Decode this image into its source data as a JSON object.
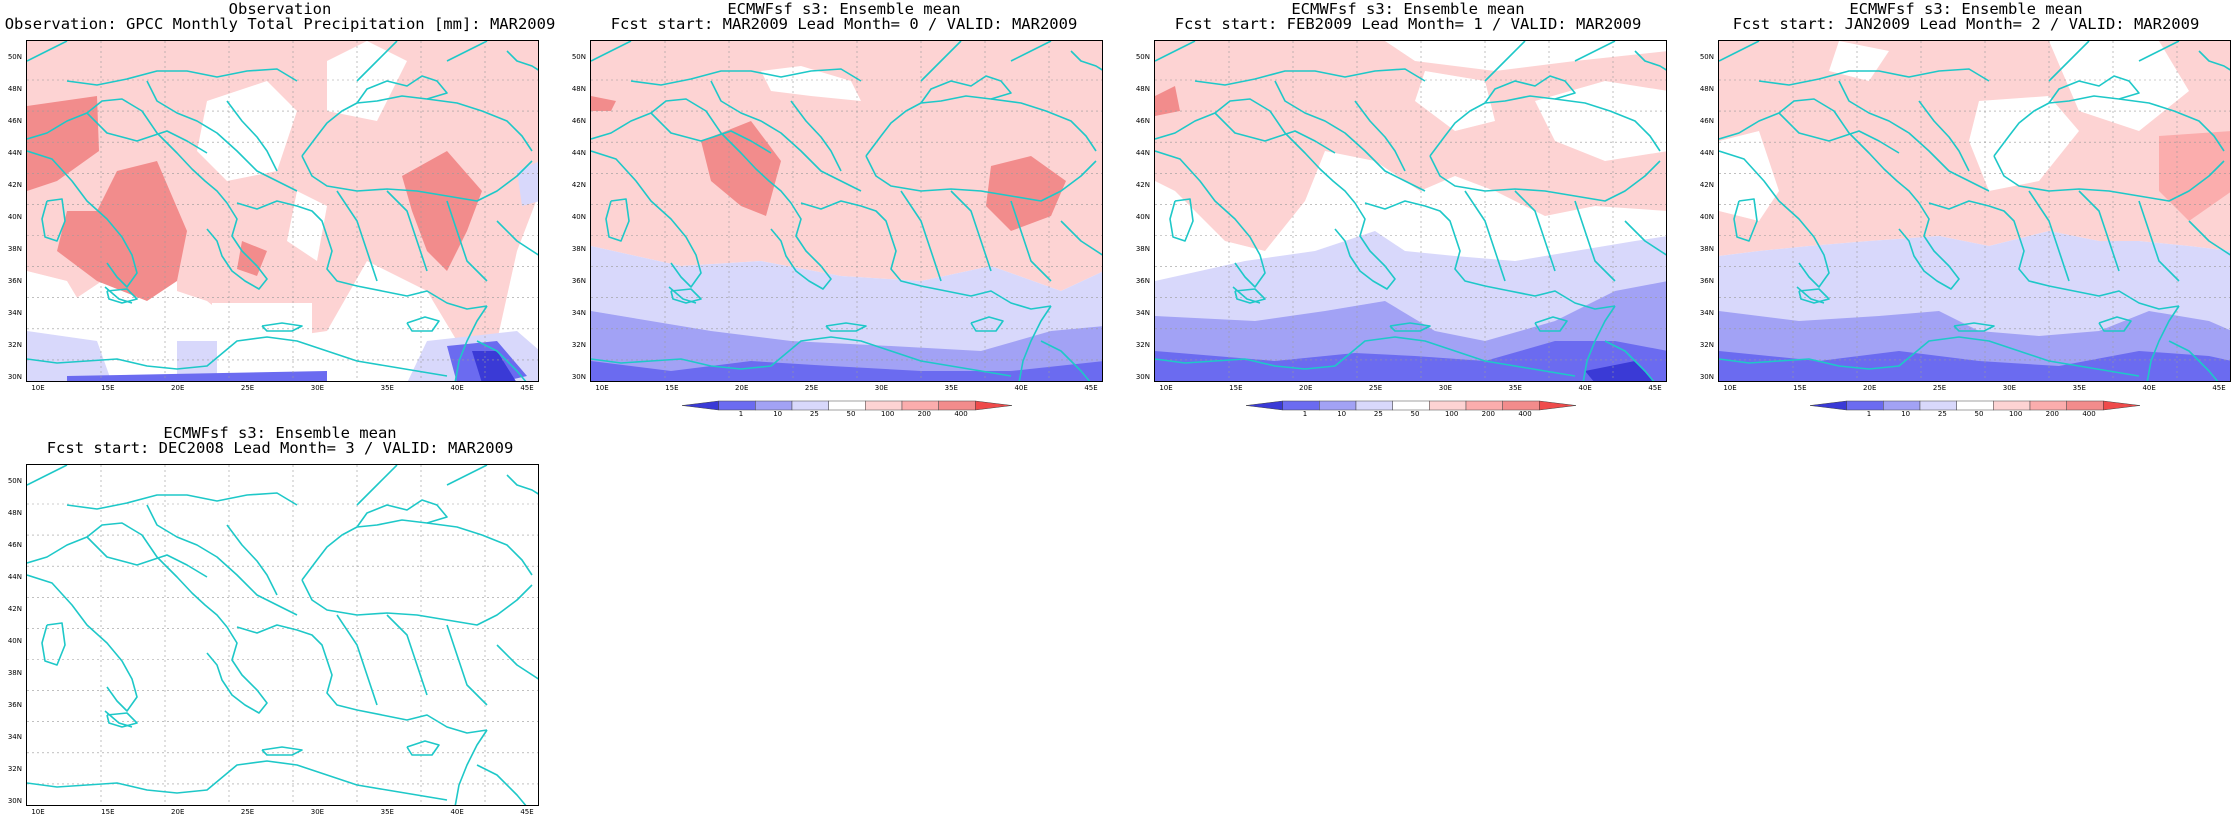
{
  "colors": {
    "coast": "#1ec8c8",
    "grid": "#9a9a9a",
    "scale": [
      "#3a3ad6",
      "#6b6bf0",
      "#a2a2f5",
      "#d8d8fb",
      "#ffffff",
      "#fdd3d3",
      "#fbadad",
      "#f28c8c",
      "#ef4b4b"
    ]
  },
  "colorbar_labels": [
    "1",
    "10",
    "25",
    "50",
    "100",
    "200",
    "400"
  ],
  "axes": {
    "lat_labels": [
      "50N",
      "48N",
      "46N",
      "44N",
      "42N",
      "40N",
      "38N",
      "36N",
      "34N",
      "32N",
      "30N"
    ],
    "lon_labels": [
      "10E",
      "15E",
      "20E",
      "25E",
      "30E",
      "35E",
      "40E",
      "45E"
    ]
  },
  "panels": [
    {
      "id": "obs",
      "title_line1": "Observation",
      "title_line2": "Observation: GPCC Monthly Total Precipitation [mm]: MAR2009",
      "has_colorbar": false,
      "field": "obs"
    },
    {
      "id": "lead0",
      "title_line1": "ECMWFsf s3: Ensemble mean",
      "title_line2": "Fcst start: MAR2009  Lead Month= 0 / VALID: MAR2009",
      "has_colorbar": true,
      "field": "lead0"
    },
    {
      "id": "lead1",
      "title_line1": "ECMWFsf s3: Ensemble mean",
      "title_line2": "Fcst start: FEB2009  Lead Month= 1 / VALID: MAR2009",
      "has_colorbar": true,
      "field": "lead1"
    },
    {
      "id": "lead2",
      "title_line1": "ECMWFsf s3: Ensemble mean",
      "title_line2": "Fcst start: JAN2009  Lead Month= 2 / VALID: MAR2009",
      "has_colorbar": true,
      "field": "lead2"
    },
    {
      "id": "lead3",
      "title_line1": "ECMWFsf s3: Ensemble mean",
      "title_line2": "Fcst start: DEC2008  Lead Month= 3 / VALID: MAR2009",
      "has_colorbar": false,
      "field": "empty"
    }
  ]
}
